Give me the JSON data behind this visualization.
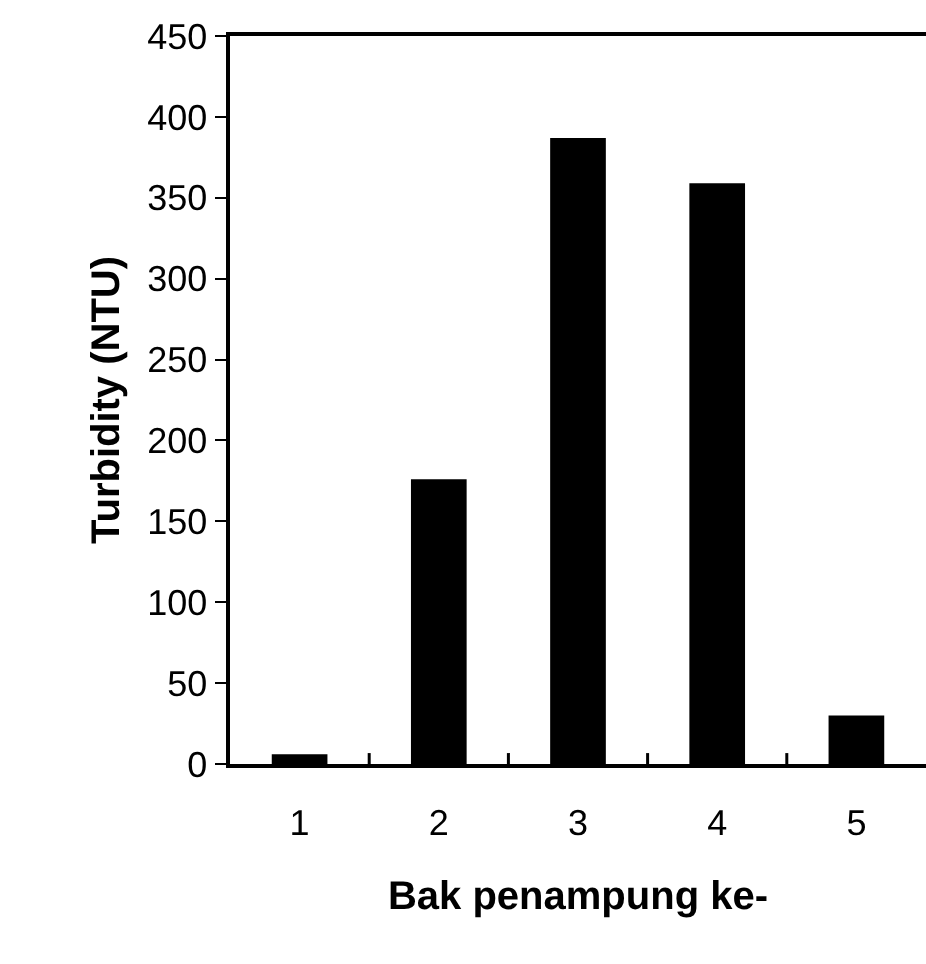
{
  "chart_data": {
    "type": "bar",
    "xlabel": "Bak penampung ke-",
    "ylabel": "Turbidity (NTU)",
    "categories": [
      "1",
      "2",
      "3",
      "4",
      "5"
    ],
    "values": [
      6,
      176,
      387,
      359,
      30
    ],
    "color": "#000000",
    "ylim": [
      0,
      450
    ],
    "yticks": [
      0,
      50,
      100,
      150,
      200,
      250,
      300,
      350,
      400,
      450
    ],
    "grid": false
  }
}
